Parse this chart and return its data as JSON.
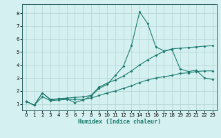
{
  "title": "",
  "xlabel": "Humidex (Indice chaleur)",
  "background_color": "#d4f0f0",
  "grid_color": "#b8d8d8",
  "line_color": "#1a7a6e",
  "xlim": [
    -0.5,
    23.5
  ],
  "ylim": [
    0.5,
    8.7
  ],
  "xticks": [
    0,
    1,
    2,
    3,
    4,
    5,
    6,
    7,
    8,
    9,
    10,
    11,
    12,
    13,
    14,
    15,
    16,
    17,
    18,
    19,
    20,
    21,
    22,
    23
  ],
  "yticks": [
    1,
    2,
    3,
    4,
    5,
    6,
    7,
    8
  ],
  "series1_x": [
    0,
    1,
    2,
    3,
    4,
    5,
    6,
    7,
    8,
    9,
    10,
    11,
    12,
    13,
    14,
    15,
    16,
    17,
    18,
    19,
    20,
    21,
    22,
    23
  ],
  "series1_y": [
    1.2,
    0.9,
    1.85,
    1.3,
    1.4,
    1.4,
    1.1,
    1.3,
    1.6,
    2.2,
    2.5,
    3.2,
    3.9,
    5.5,
    8.1,
    7.2,
    5.4,
    5.1,
    5.2,
    3.7,
    3.5,
    3.6,
    3.0,
    2.9
  ],
  "series2_x": [
    0,
    1,
    2,
    3,
    4,
    5,
    6,
    7,
    8,
    9,
    10,
    11,
    12,
    13,
    14,
    15,
    16,
    17,
    18,
    19,
    20,
    21,
    22,
    23
  ],
  "series2_y": [
    1.2,
    0.9,
    1.85,
    1.35,
    1.4,
    1.45,
    1.5,
    1.55,
    1.65,
    2.3,
    2.6,
    2.85,
    3.15,
    3.55,
    4.0,
    4.4,
    4.75,
    5.05,
    5.25,
    5.3,
    5.35,
    5.4,
    5.45,
    5.5
  ],
  "series3_x": [
    0,
    1,
    2,
    3,
    4,
    5,
    6,
    7,
    8,
    9,
    10,
    11,
    12,
    13,
    14,
    15,
    16,
    17,
    18,
    19,
    20,
    21,
    22,
    23
  ],
  "series3_y": [
    1.2,
    0.9,
    1.55,
    1.25,
    1.3,
    1.35,
    1.35,
    1.35,
    1.45,
    1.65,
    1.85,
    2.0,
    2.2,
    2.4,
    2.65,
    2.85,
    3.0,
    3.1,
    3.2,
    3.35,
    3.4,
    3.5,
    3.55,
    3.55
  ]
}
